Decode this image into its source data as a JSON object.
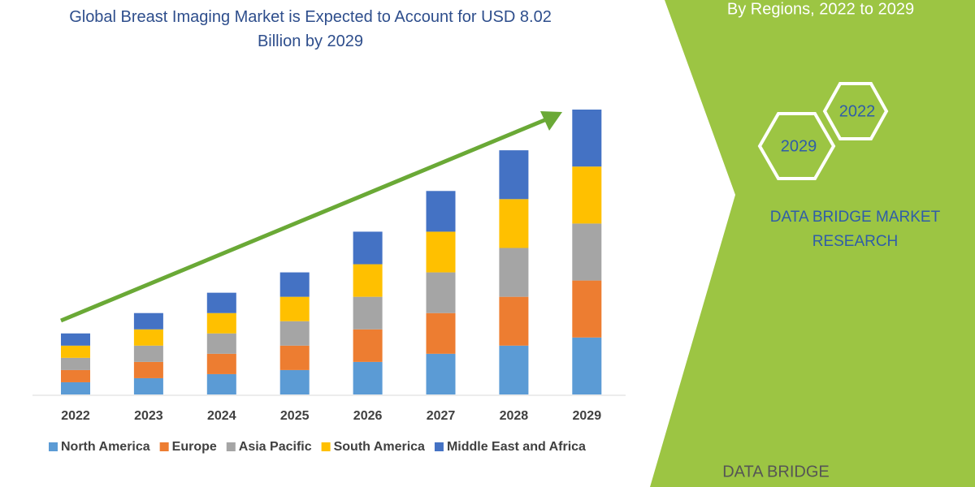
{
  "chart_data": {
    "type": "stacked_bar",
    "title": "Global Breast Imaging Market is Expected to Account for USD 8.02 Billion by 2029",
    "categories": [
      "2022",
      "2023",
      "2024",
      "2025",
      "2026",
      "2027",
      "2028",
      "2029"
    ],
    "series": [
      {
        "name": "North America",
        "color": "#5b9bd5",
        "values": [
          1.5,
          2,
          2.5,
          3,
          4,
          5,
          6,
          7
        ]
      },
      {
        "name": "Europe",
        "color": "#ed7d31",
        "values": [
          1.5,
          2,
          2.5,
          3,
          4,
          5,
          6,
          7
        ]
      },
      {
        "name": "Asia Pacific",
        "color": "#a5a5a5",
        "values": [
          1.5,
          2,
          2.5,
          3,
          4,
          5,
          6,
          7
        ]
      },
      {
        "name": "South America",
        "color": "#ffc000",
        "values": [
          1.5,
          2,
          2.5,
          3,
          4,
          5,
          6,
          7
        ]
      },
      {
        "name": "Middle East and Africa",
        "color": "#4472c4",
        "values": [
          1.5,
          2,
          2.5,
          3,
          4,
          5,
          6,
          7
        ]
      }
    ],
    "annotations": [
      "By Regions, 2022 to 2029",
      "2022",
      "2029",
      "DATA BRIDGE MARKET RESEARCH",
      "DATA BRIDGE"
    ]
  }
}
